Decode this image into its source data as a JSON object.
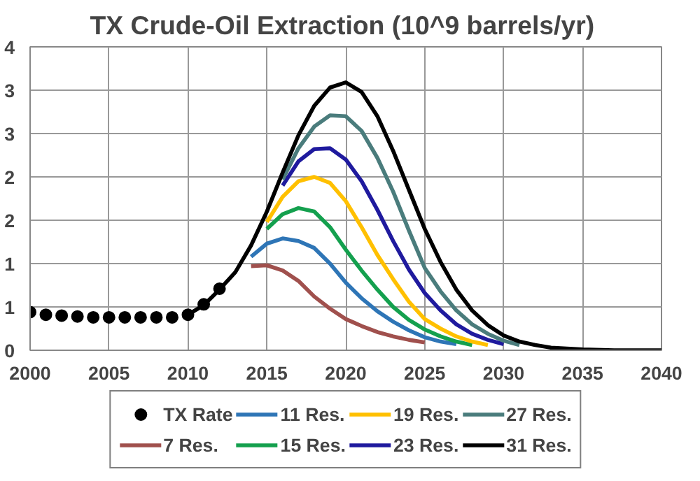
{
  "chart_data": {
    "type": "line",
    "title": "TX Crude-Oil  Extraction (10^9 barrels/yr)",
    "xlim": [
      2000,
      2040
    ],
    "xticks": [
      2000,
      2005,
      2010,
      2015,
      2020,
      2025,
      2030,
      2035,
      2040
    ],
    "ylim": [
      0,
      3.5
    ],
    "yticks": [
      {
        "value": 0,
        "label": "0"
      },
      {
        "value": 0.5,
        "label": "1"
      },
      {
        "value": 1,
        "label": "1"
      },
      {
        "value": 1.5,
        "label": "2"
      },
      {
        "value": 2,
        "label": "2"
      },
      {
        "value": 2.5,
        "label": "3"
      },
      {
        "value": 3,
        "label": "3"
      },
      {
        "value": 3.5,
        "label": "4"
      }
    ],
    "grid": true,
    "legend": "bottom",
    "line_style": "solid",
    "series": [
      {
        "name": "TX Rate",
        "type": "scatter",
        "marker": "circle",
        "color": "#000000",
        "x": [
          2000,
          2001,
          2002,
          2003,
          2004,
          2005,
          2006,
          2007,
          2008,
          2009,
          2010,
          2011,
          2012
        ],
        "values": [
          0.44,
          0.41,
          0.4,
          0.39,
          0.38,
          0.38,
          0.38,
          0.38,
          0.38,
          0.38,
          0.41,
          0.53,
          0.71
        ]
      },
      {
        "name": "7 Res.",
        "color": "#a0504d",
        "x": [
          2014,
          2015,
          2016,
          2017,
          2018,
          2019,
          2020,
          2021,
          2022,
          2023,
          2024,
          2025
        ],
        "values": [
          0.97,
          0.98,
          0.92,
          0.8,
          0.62,
          0.48,
          0.36,
          0.28,
          0.21,
          0.16,
          0.12,
          0.09
        ]
      },
      {
        "name": "11 Res.",
        "color": "#2e75b6",
        "x": [
          2014,
          2015,
          2016,
          2017,
          2018,
          2019,
          2020,
          2021,
          2022,
          2023,
          2024,
          2025,
          2026,
          2027
        ],
        "values": [
          1.08,
          1.23,
          1.29,
          1.26,
          1.18,
          1.0,
          0.78,
          0.6,
          0.45,
          0.33,
          0.23,
          0.15,
          0.1,
          0.07
        ]
      },
      {
        "name": "15 Res.",
        "color": "#14a04e",
        "x": [
          2015,
          2016,
          2017,
          2018,
          2019,
          2020,
          2021,
          2022,
          2023,
          2024,
          2025,
          2026,
          2027,
          2028
        ],
        "values": [
          1.4,
          1.57,
          1.64,
          1.6,
          1.42,
          1.16,
          0.92,
          0.7,
          0.5,
          0.35,
          0.24,
          0.16,
          0.1,
          0.06
        ]
      },
      {
        "name": "19 Res.",
        "color": "#ffc000",
        "x": [
          2015,
          2016,
          2017,
          2018,
          2019,
          2020,
          2021,
          2022,
          2023,
          2024,
          2025,
          2026,
          2027,
          2028,
          2029
        ],
        "values": [
          1.48,
          1.77,
          1.95,
          2.0,
          1.93,
          1.72,
          1.42,
          1.1,
          0.82,
          0.56,
          0.36,
          0.25,
          0.16,
          0.1,
          0.06
        ]
      },
      {
        "name": "23 Res.",
        "color": "#1f1a9e",
        "x": [
          2016,
          2017,
          2018,
          2019,
          2020,
          2021,
          2022,
          2023,
          2024,
          2025,
          2026,
          2027,
          2028,
          2029,
          2030
        ],
        "values": [
          1.9,
          2.18,
          2.32,
          2.33,
          2.2,
          1.95,
          1.62,
          1.26,
          0.93,
          0.66,
          0.46,
          0.3,
          0.19,
          0.12,
          0.07
        ]
      },
      {
        "name": "27 Res.",
        "color": "#4a7c7c",
        "x": [
          2016,
          2017,
          2018,
          2019,
          2020,
          2021,
          2022,
          2023,
          2024,
          2025,
          2026,
          2027,
          2028,
          2029,
          2030,
          2031
        ],
        "values": [
          1.97,
          2.33,
          2.58,
          2.71,
          2.7,
          2.53,
          2.22,
          1.83,
          1.38,
          0.95,
          0.68,
          0.46,
          0.3,
          0.19,
          0.11,
          0.06
        ]
      },
      {
        "name": "31 Res.",
        "color": "#000000",
        "x": [
          2010,
          2011,
          2012,
          2013,
          2014,
          2015,
          2016,
          2017,
          2018,
          2019,
          2020,
          2021,
          2022,
          2023,
          2024,
          2025,
          2026,
          2027,
          2028,
          2029,
          2030,
          2031,
          2032,
          2033,
          2035,
          2037,
          2040
        ],
        "values": [
          0.41,
          0.52,
          0.7,
          0.9,
          1.21,
          1.6,
          2.05,
          2.48,
          2.82,
          3.03,
          3.09,
          2.98,
          2.7,
          2.3,
          1.85,
          1.4,
          1.02,
          0.7,
          0.46,
          0.29,
          0.17,
          0.1,
          0.06,
          0.03,
          0.01,
          0,
          0
        ]
      }
    ]
  }
}
